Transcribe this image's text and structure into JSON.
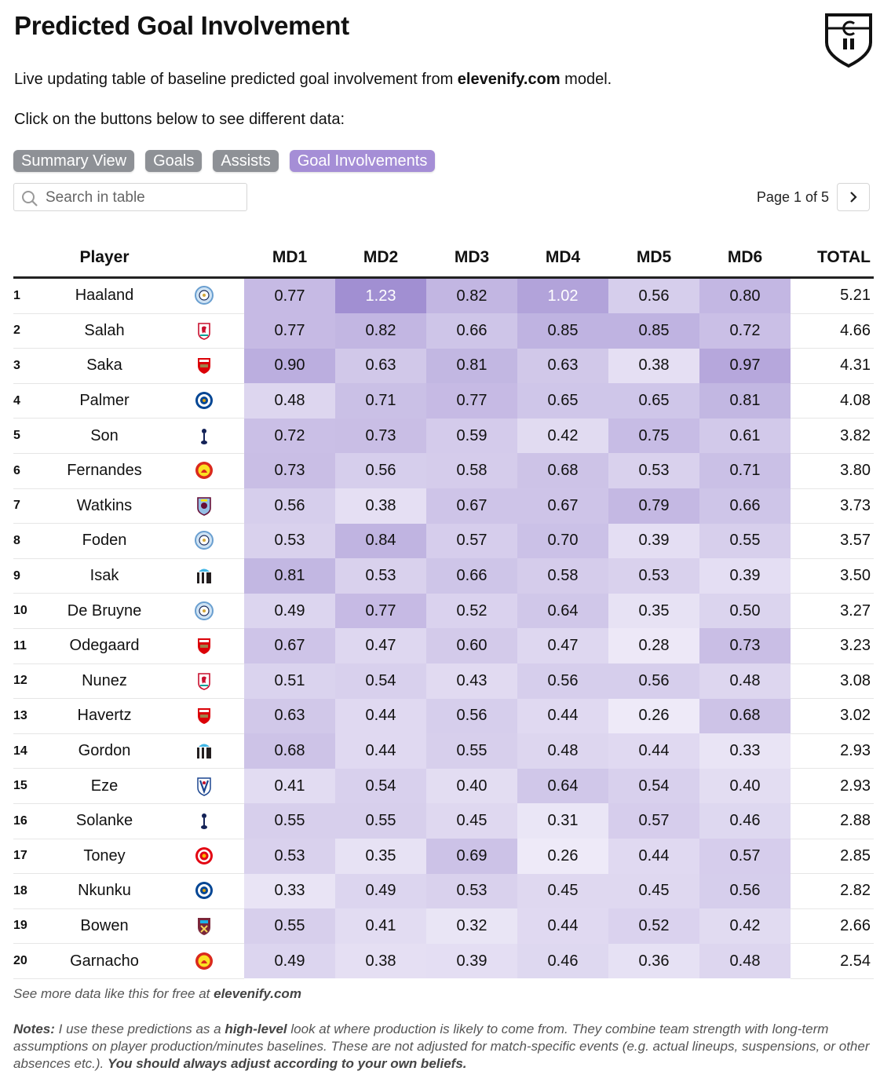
{
  "header": {
    "title": "Predicted Goal Involvement",
    "subtitle_prefix": "Live updating table of baseline predicted goal involvement from ",
    "subtitle_site": "elevenify.com",
    "subtitle_suffix": " model.",
    "hint": "Click on the buttons below to see different data:"
  },
  "buttons": [
    {
      "label": "Summary View",
      "active": false
    },
    {
      "label": "Goals",
      "active": false
    },
    {
      "label": "Assists",
      "active": false
    },
    {
      "label": "Goal Involvements",
      "active": true
    }
  ],
  "search": {
    "placeholder": "Search in table"
  },
  "pager": {
    "text": "Page 1 of 5"
  },
  "columns": {
    "player": "Player",
    "md": [
      "MD1",
      "MD2",
      "MD3",
      "MD4",
      "MD5",
      "MD6"
    ],
    "total": "TOTAL"
  },
  "colors": {
    "heat_low": "#f3f0fa",
    "heat_high": "#a18fd2"
  },
  "rows": [
    {
      "rank": "1",
      "player": "Haaland",
      "team": "man-city",
      "md": [
        "0.77",
        "1.23",
        "0.82",
        "1.02",
        "0.56",
        "0.80"
      ],
      "total": "5.21"
    },
    {
      "rank": "2",
      "player": "Salah",
      "team": "liverpool",
      "md": [
        "0.77",
        "0.82",
        "0.66",
        "0.85",
        "0.85",
        "0.72"
      ],
      "total": "4.66"
    },
    {
      "rank": "3",
      "player": "Saka",
      "team": "arsenal",
      "md": [
        "0.90",
        "0.63",
        "0.81",
        "0.63",
        "0.38",
        "0.97"
      ],
      "total": "4.31"
    },
    {
      "rank": "4",
      "player": "Palmer",
      "team": "chelsea",
      "md": [
        "0.48",
        "0.71",
        "0.77",
        "0.65",
        "0.65",
        "0.81"
      ],
      "total": "4.08"
    },
    {
      "rank": "5",
      "player": "Son",
      "team": "tottenham",
      "md": [
        "0.72",
        "0.73",
        "0.59",
        "0.42",
        "0.75",
        "0.61"
      ],
      "total": "3.82"
    },
    {
      "rank": "6",
      "player": "Fernandes",
      "team": "man-united",
      "md": [
        "0.73",
        "0.56",
        "0.58",
        "0.68",
        "0.53",
        "0.71"
      ],
      "total": "3.80"
    },
    {
      "rank": "7",
      "player": "Watkins",
      "team": "aston-villa",
      "md": [
        "0.56",
        "0.38",
        "0.67",
        "0.67",
        "0.79",
        "0.66"
      ],
      "total": "3.73"
    },
    {
      "rank": "8",
      "player": "Foden",
      "team": "man-city",
      "md": [
        "0.53",
        "0.84",
        "0.57",
        "0.70",
        "0.39",
        "0.55"
      ],
      "total": "3.57"
    },
    {
      "rank": "9",
      "player": "Isak",
      "team": "newcastle",
      "md": [
        "0.81",
        "0.53",
        "0.66",
        "0.58",
        "0.53",
        "0.39"
      ],
      "total": "3.50"
    },
    {
      "rank": "10",
      "player": "De Bruyne",
      "team": "man-city",
      "md": [
        "0.49",
        "0.77",
        "0.52",
        "0.64",
        "0.35",
        "0.50"
      ],
      "total": "3.27"
    },
    {
      "rank": "11",
      "player": "Odegaard",
      "team": "arsenal",
      "md": [
        "0.67",
        "0.47",
        "0.60",
        "0.47",
        "0.28",
        "0.73"
      ],
      "total": "3.23"
    },
    {
      "rank": "12",
      "player": "Nunez",
      "team": "liverpool",
      "md": [
        "0.51",
        "0.54",
        "0.43",
        "0.56",
        "0.56",
        "0.48"
      ],
      "total": "3.08"
    },
    {
      "rank": "13",
      "player": "Havertz",
      "team": "arsenal",
      "md": [
        "0.63",
        "0.44",
        "0.56",
        "0.44",
        "0.26",
        "0.68"
      ],
      "total": "3.02"
    },
    {
      "rank": "14",
      "player": "Gordon",
      "team": "newcastle",
      "md": [
        "0.68",
        "0.44",
        "0.55",
        "0.48",
        "0.44",
        "0.33"
      ],
      "total": "2.93"
    },
    {
      "rank": "15",
      "player": "Eze",
      "team": "crystal-palace",
      "md": [
        "0.41",
        "0.54",
        "0.40",
        "0.64",
        "0.54",
        "0.40"
      ],
      "total": "2.93"
    },
    {
      "rank": "16",
      "player": "Solanke",
      "team": "tottenham",
      "md": [
        "0.55",
        "0.55",
        "0.45",
        "0.31",
        "0.57",
        "0.46"
      ],
      "total": "2.88"
    },
    {
      "rank": "17",
      "player": "Toney",
      "team": "brentford",
      "md": [
        "0.53",
        "0.35",
        "0.69",
        "0.26",
        "0.44",
        "0.57"
      ],
      "total": "2.85"
    },
    {
      "rank": "18",
      "player": "Nkunku",
      "team": "chelsea",
      "md": [
        "0.33",
        "0.49",
        "0.53",
        "0.45",
        "0.45",
        "0.56"
      ],
      "total": "2.82"
    },
    {
      "rank": "19",
      "player": "Bowen",
      "team": "west-ham",
      "md": [
        "0.55",
        "0.41",
        "0.32",
        "0.44",
        "0.52",
        "0.42"
      ],
      "total": "2.66"
    },
    {
      "rank": "20",
      "player": "Garnacho",
      "team": "man-united",
      "md": [
        "0.49",
        "0.38",
        "0.39",
        "0.46",
        "0.36",
        "0.48"
      ],
      "total": "2.54"
    }
  ],
  "footer": {
    "prefix": "See more data like this for free at ",
    "site": "elevenify.com"
  },
  "notes": {
    "label": "Notes:",
    "part1": " I use these predictions as a ",
    "bold1": "high-level",
    "part2": " look at where production is likely to come from. They combine team strength with long-term assumptions on player production/minutes baselines. These are not adjusted for match-specific events (e.g. actual lineups, suspensions, or other absences etc.). ",
    "bold2": "You should always adjust according to your own beliefs."
  }
}
